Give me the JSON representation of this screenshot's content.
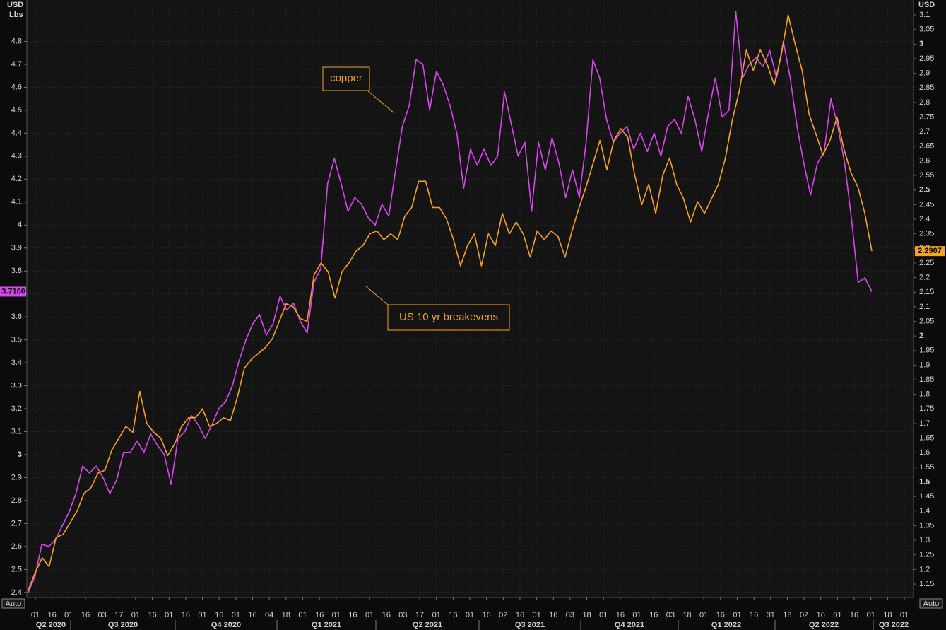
{
  "chart_data": {
    "type": "line",
    "y_unit_label": [
      "USD",
      "Lbs"
    ],
    "y2_unit_label": "USD",
    "auto_label": "Auto",
    "ylim": [
      2.378,
      4.98
    ],
    "yticks": [
      2.4,
      2.5,
      2.6,
      2.7,
      2.8,
      2.9,
      3,
      3.1,
      3.2,
      3.3,
      3.4,
      3.5,
      3.6,
      3.7,
      3.8,
      3.9,
      4,
      4.1,
      4.2,
      4.3,
      4.4,
      4.5,
      4.6,
      4.7,
      4.8
    ],
    "y2lim": [
      1.104,
      3.151
    ],
    "y2ticks": [
      1.15,
      1.2,
      1.25,
      1.3,
      1.35,
      1.4,
      1.45,
      1.5,
      1.55,
      1.6,
      1.65,
      1.7,
      1.75,
      1.8,
      1.85,
      1.9,
      1.95,
      2,
      2.05,
      2.1,
      2.15,
      2.2,
      2.25,
      2.3,
      2.35,
      2.4,
      2.45,
      2.5,
      2.55,
      2.6,
      2.65,
      2.7,
      2.75,
      2.8,
      2.85,
      2.9,
      2.95,
      3,
      3.05,
      3.1
    ],
    "x_tick_labels": [
      "01",
      "16",
      "01",
      "16",
      "03",
      "17",
      "01",
      "16",
      "01",
      "16",
      "01",
      "16",
      "01",
      "16",
      "04",
      "18",
      "01",
      "16",
      "01",
      "16",
      "01",
      "16",
      "03",
      "17",
      "01",
      "16",
      "01",
      "16",
      "02",
      "16",
      "01",
      "16",
      "03",
      "18",
      "01",
      "16",
      "01",
      "16",
      "03",
      "18",
      "01",
      "16",
      "01",
      "16",
      "01",
      "18",
      "02",
      "16",
      "01",
      "16",
      "01",
      "18",
      "01"
    ],
    "x_period_labels": [
      "Q2 2020",
      "Q3 2020",
      "Q4 2020",
      "Q1 2021",
      "Q2 2021",
      "Q3 2021",
      "Q4 2021",
      "Q1 2022",
      "Q2 2022",
      "Q3 2022"
    ],
    "grid": true,
    "series": [
      {
        "name": "copper",
        "color": "#d946ef",
        "axis": "y",
        "last_value_label": "3.7100",
        "values": [
          2.4,
          2.47,
          2.61,
          2.6,
          2.63,
          2.69,
          2.75,
          2.83,
          2.95,
          2.92,
          2.95,
          2.9,
          2.83,
          2.89,
          3.01,
          3.01,
          3.06,
          3.01,
          3.09,
          3.04,
          3.0,
          2.87,
          3.07,
          3.1,
          3.17,
          3.13,
          3.07,
          3.13,
          3.2,
          3.23,
          3.3,
          3.41,
          3.5,
          3.57,
          3.61,
          3.52,
          3.57,
          3.69,
          3.63,
          3.66,
          3.58,
          3.53,
          3.75,
          3.81,
          4.18,
          4.29,
          4.18,
          4.06,
          4.12,
          4.09,
          4.03,
          4.0,
          4.09,
          4.04,
          4.24,
          4.43,
          4.52,
          4.72,
          4.7,
          4.5,
          4.67,
          4.61,
          4.52,
          4.4,
          4.16,
          4.33,
          4.26,
          4.33,
          4.26,
          4.3,
          4.58,
          4.44,
          4.3,
          4.36,
          4.06,
          4.36,
          4.24,
          4.38,
          4.27,
          4.12,
          4.24,
          4.12,
          4.36,
          4.72,
          4.64,
          4.46,
          4.36,
          4.4,
          4.43,
          4.33,
          4.4,
          4.32,
          4.4,
          4.3,
          4.43,
          4.46,
          4.4,
          4.56,
          4.46,
          4.32,
          4.49,
          4.64,
          4.47,
          4.5,
          4.93,
          4.64,
          4.7,
          4.73,
          4.69,
          4.76,
          4.64,
          4.8,
          4.64,
          4.43,
          4.27,
          4.13,
          4.27,
          4.32,
          4.55,
          4.43,
          4.27,
          4.03,
          3.75,
          3.77,
          3.71
        ]
      },
      {
        "name": "US 10 yr breakevens",
        "color": "#f7a21b",
        "axis": "y2",
        "last_value_label": "2.2907",
        "values": [
          1.13,
          1.19,
          1.24,
          1.21,
          1.31,
          1.32,
          1.36,
          1.4,
          1.46,
          1.48,
          1.53,
          1.54,
          1.61,
          1.65,
          1.69,
          1.67,
          1.81,
          1.7,
          1.67,
          1.65,
          1.59,
          1.63,
          1.69,
          1.72,
          1.72,
          1.75,
          1.69,
          1.7,
          1.72,
          1.71,
          1.79,
          1.89,
          1.92,
          1.94,
          1.96,
          1.99,
          2.05,
          2.11,
          2.1,
          2.06,
          2.05,
          2.21,
          2.25,
          2.22,
          2.13,
          2.22,
          2.25,
          2.29,
          2.31,
          2.35,
          2.36,
          2.33,
          2.35,
          2.33,
          2.41,
          2.44,
          2.53,
          2.53,
          2.44,
          2.44,
          2.4,
          2.33,
          2.24,
          2.31,
          2.35,
          2.24,
          2.35,
          2.31,
          2.42,
          2.35,
          2.39,
          2.35,
          2.27,
          2.36,
          2.33,
          2.36,
          2.34,
          2.27,
          2.36,
          2.44,
          2.51,
          2.59,
          2.67,
          2.57,
          2.67,
          2.71,
          2.68,
          2.55,
          2.45,
          2.52,
          2.42,
          2.55,
          2.61,
          2.52,
          2.47,
          2.39,
          2.46,
          2.42,
          2.47,
          2.52,
          2.61,
          2.74,
          2.84,
          2.98,
          2.91,
          2.98,
          2.93,
          2.86,
          2.96,
          3.1,
          3.0,
          2.91,
          2.76,
          2.69,
          2.62,
          2.67,
          2.75,
          2.64,
          2.56,
          2.51,
          2.42,
          2.2907
        ]
      }
    ]
  }
}
